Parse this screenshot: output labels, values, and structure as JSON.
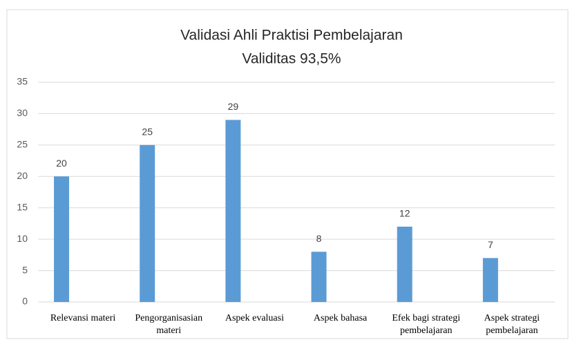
{
  "chart_data": {
    "type": "bar",
    "title": [
      "Validasi Ahli Praktisi Pembelajaran",
      "Validitas 93,5%"
    ],
    "categories": [
      "Relevansi materi",
      "Pengorganisasian materi",
      "Aspek evaluasi",
      "Aspek bahasa",
      "Efek bagi strategi pembelajaran",
      "Aspek strategi pembelajaran"
    ],
    "values": [
      20,
      25,
      29,
      8,
      12,
      7
    ],
    "color": "#5b9bd5",
    "ylim": [
      0,
      35
    ],
    "yticks": [
      0,
      5,
      10,
      15,
      20,
      25,
      30,
      35
    ],
    "grid": true
  }
}
